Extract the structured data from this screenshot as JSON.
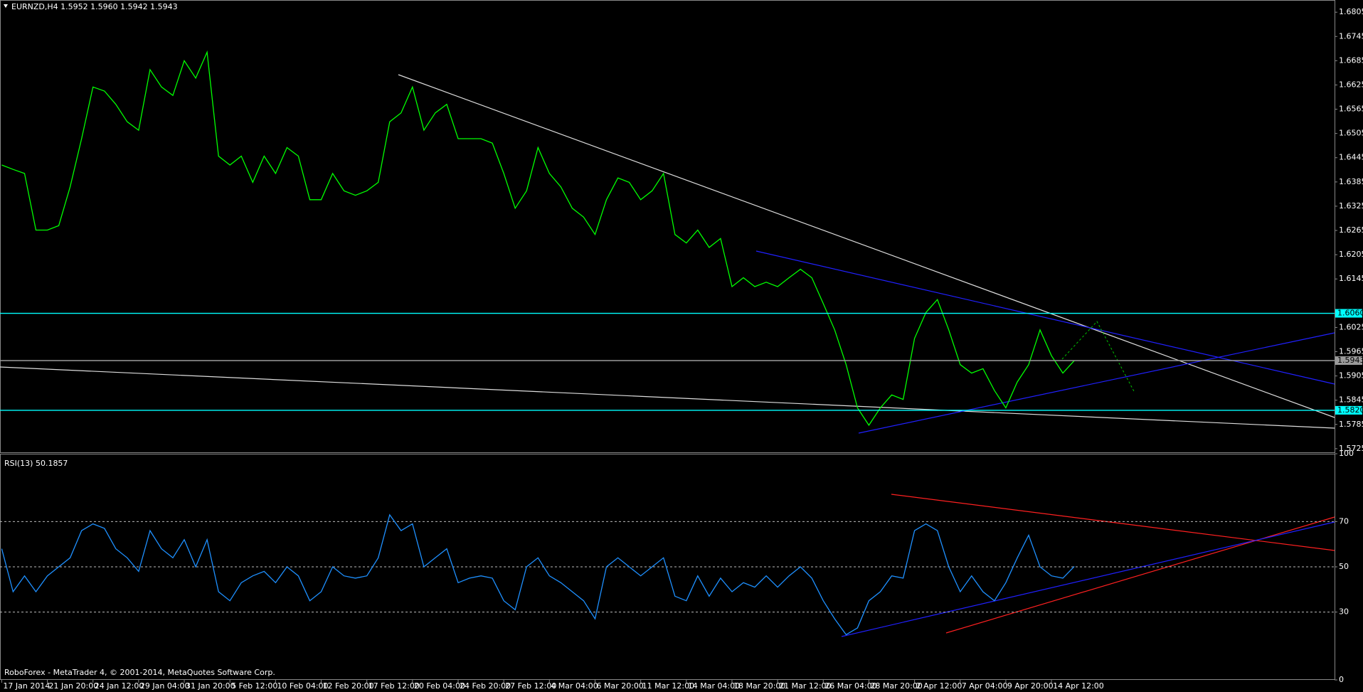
{
  "chart_data": [
    {
      "type": "line",
      "title": "EURNZD,H4  1.5952 1.5960 1.5942 1.5943",
      "categories": [
        "17 Jan 2014",
        null,
        null,
        null,
        "21 Jan 20:00",
        null,
        null,
        null,
        "24 Jan 12:00",
        null,
        null,
        null,
        "29 Jan 04:00",
        null,
        null,
        null,
        "31 Jan 20:00",
        null,
        null,
        null,
        "5 Feb 12:00",
        null,
        null,
        null,
        "10 Feb 04:00",
        null,
        null,
        null,
        "12 Feb 20:00",
        null,
        null,
        null,
        "17 Feb 12:00",
        null,
        null,
        null,
        "20 Feb 04:00",
        null,
        null,
        null,
        "24 Feb 20:00",
        null,
        null,
        null,
        "27 Feb 12:00",
        null,
        null,
        null,
        "4 Mar 04:00",
        null,
        null,
        null,
        "6 Mar 20:00",
        null,
        null,
        null,
        "11 Mar 12:00",
        null,
        null,
        null,
        "14 Mar 04:00",
        null,
        null,
        null,
        "18 Mar 20:00",
        null,
        null,
        null,
        "21 Mar 12:00",
        null,
        null,
        null,
        "26 Mar 04:00",
        null,
        null,
        null,
        "28 Mar 20:00",
        null,
        null,
        null,
        "2 Apr 12:00",
        null,
        null,
        null,
        "7 Apr 04:00",
        null,
        null,
        null,
        "9 Apr 20:00",
        null,
        null,
        null,
        "14 Apr 12:00",
        null,
        null
      ],
      "series": [
        {
          "name": "EURNZD",
          "color": "#00ff00",
          "values": [
            1.6427,
            1.6416,
            1.6406,
            1.6266,
            1.6266,
            1.6277,
            1.6373,
            1.6492,
            1.662,
            1.661,
            1.6577,
            1.6534,
            1.6513,
            1.6663,
            1.662,
            1.6599,
            1.6685,
            1.6642,
            1.6706,
            1.6449,
            1.6427,
            1.6449,
            1.6384,
            1.6449,
            1.6406,
            1.647,
            1.6449,
            1.6341,
            1.6341,
            1.6406,
            1.6363,
            1.6352,
            1.6363,
            1.6384,
            1.6534,
            1.6556,
            1.662,
            1.6513,
            1.6556,
            1.6577,
            1.6492,
            1.6492,
            1.6492,
            1.6481,
            1.6406,
            1.632,
            1.6363,
            1.647,
            1.6406,
            1.6373,
            1.632,
            1.6298,
            1.6255,
            1.6341,
            1.6395,
            1.6384,
            1.6341,
            1.6363,
            1.6406,
            1.6255,
            1.6234,
            1.6266,
            1.6223,
            1.6245,
            1.6126,
            1.6148,
            1.6126,
            1.6137,
            1.6126,
            1.6148,
            1.6169,
            1.6148,
            1.6084,
            1.6019,
            1.5933,
            1.5826,
            1.5783,
            1.5826,
            1.5858,
            1.5847,
            1.5998,
            1.6062,
            1.6094,
            1.6019,
            1.5933,
            1.5912,
            1.5923,
            1.5869,
            1.5826,
            1.589,
            1.5933,
            1.6019,
            1.5955,
            1.5912,
            1.5943
          ]
        }
      ],
      "ylim": [
        1.5716,
        1.6831
      ],
      "yticks": [
        1.6805,
        1.6745,
        1.6685,
        1.6625,
        1.6565,
        1.6505,
        1.6445,
        1.6385,
        1.6325,
        1.6265,
        1.6205,
        1.6145,
        1.6025,
        1.5965,
        1.5905,
        1.5845,
        1.5785,
        1.5725
      ],
      "levels": [
        {
          "value": 1.606,
          "label": "1.6060",
          "color": "#00ffff"
        },
        {
          "value": 1.582,
          "label": "1.5820",
          "color": "#00ffff"
        },
        {
          "value": 1.5943,
          "label": "1.5943",
          "color": "#9a9a9a"
        }
      ]
    },
    {
      "type": "line",
      "title": "RSI(13) 50.1857",
      "series": [
        {
          "name": "RSI(13)",
          "color": "#1e90ff",
          "values": [
            58,
            39,
            46,
            39,
            46,
            50,
            54,
            66,
            69,
            67,
            58,
            54,
            48,
            66,
            58,
            54,
            62,
            50,
            62,
            39,
            35,
            43,
            46,
            48,
            43,
            50,
            46,
            35,
            39,
            50,
            46,
            45,
            46,
            54,
            73,
            66,
            69,
            50,
            54,
            58,
            43,
            45,
            46,
            45,
            35,
            31,
            50,
            54,
            46,
            43,
            39,
            35,
            27,
            50,
            54,
            50,
            46,
            50,
            54,
            37,
            35,
            46,
            37,
            45,
            39,
            43,
            41,
            46,
            41,
            46,
            50,
            45,
            35,
            27,
            20,
            23,
            35,
            39,
            46,
            45,
            66,
            69,
            66,
            50,
            39,
            46,
            39,
            35,
            43,
            54,
            64,
            50,
            46,
            45,
            50.1857
          ]
        }
      ],
      "ylim": [
        0,
        100
      ],
      "yticks": [
        0,
        30,
        50,
        70,
        100
      ],
      "grid_levels": [
        30,
        50,
        70
      ]
    }
  ],
  "footer": "RoboForex - MetaTrader 4, © 2001-2014, MetaQuotes Software Corp."
}
